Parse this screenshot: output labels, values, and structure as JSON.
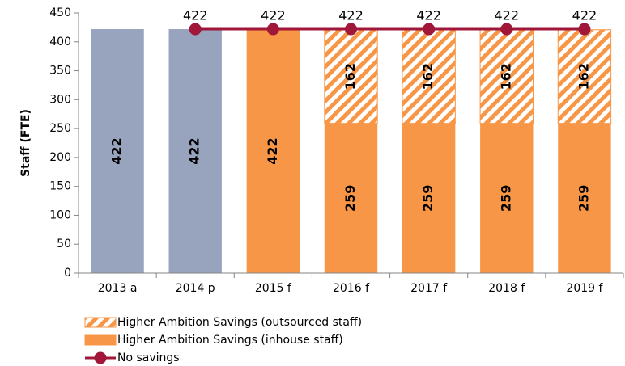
{
  "chart_data": {
    "type": "bar",
    "y_label": "Staff (FTE)",
    "categories": [
      "2013 a",
      "2014 p",
      "2015 f",
      "2016 f",
      "2017 f",
      "2018 f",
      "2019 f"
    ],
    "series": [
      {
        "color": "#98a3bd",
        "values": [
          422,
          422,
          null,
          null,
          null,
          null,
          null
        ]
      },
      {
        "name": "Higher Ambition Savings (inhouse staff)",
        "color": "#f79646",
        "values": [
          null,
          null,
          422,
          259,
          259,
          259,
          259
        ]
      },
      {
        "name": "Higher Ambition Savings (outsourced staff)",
        "color": "#f79646",
        "pattern": "hatch",
        "values": [
          null,
          null,
          null,
          162,
          162,
          162,
          162
        ]
      },
      {
        "name": "No savings",
        "type": "line",
        "color": "#a0173a",
        "values": [
          null,
          422,
          422,
          422,
          422,
          422,
          422
        ]
      }
    ],
    "ylim": [
      0,
      450
    ],
    "yticks": [
      0,
      50,
      100,
      150,
      200,
      250,
      300,
      350,
      400,
      450
    ]
  }
}
